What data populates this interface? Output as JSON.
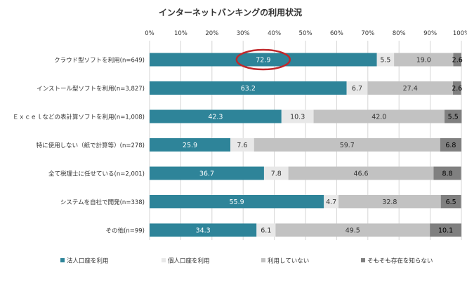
{
  "chart_data": {
    "type": "bar",
    "stacked": true,
    "orientation": "horizontal",
    "title": "インターネットバンキングの利用状況",
    "xlim": [
      0,
      100
    ],
    "x_ticks": [
      "0%",
      "10%",
      "20%",
      "30%",
      "40%",
      "50%",
      "60%",
      "70%",
      "80%",
      "90%",
      "100%"
    ],
    "grid": true,
    "legend_position": "bottom",
    "categories": [
      "クラウド型ソフトを利用(n=649)",
      "インストール型ソフトを利用(n=3,827)",
      "Ｅｘｃｅｌなどの表計算ソフトを利用(n=1,008)",
      "特に使用しない（紙で計算等）(n=278)",
      "全て税理士に任せている(n=2,001)",
      "システムを自社で開発(n=338)",
      "その他(n=99)"
    ],
    "series": [
      {
        "name": "法人口座を利用",
        "color": "#2E8499",
        "text_color": "#ffffff",
        "values": [
          72.9,
          63.2,
          42.3,
          25.9,
          36.7,
          55.9,
          34.3
        ],
        "labels": [
          "72.9",
          "63.2",
          "42.3",
          "25.9",
          "36.7",
          "55.9",
          "34.3"
        ]
      },
      {
        "name": "個人口座を利用",
        "color": "#E8E8E8",
        "text_color": "#333333",
        "values": [
          5.5,
          6.7,
          10.3,
          7.6,
          7.8,
          4.7,
          6.1
        ],
        "labels": [
          "5.5",
          "6.7",
          "10.3",
          "7.6",
          "7.8",
          "4.7",
          "6.1"
        ]
      },
      {
        "name": "利用していない",
        "color": "#C2C2C2",
        "text_color": "#333333",
        "values": [
          19.0,
          27.4,
          42.0,
          59.7,
          46.6,
          32.8,
          49.5
        ],
        "labels": [
          "19.0",
          "27.4",
          "42.0",
          "59.7",
          "46.6",
          "32.8",
          "49.5"
        ]
      },
      {
        "name": "そもそも存在を知らない",
        "color": "#808080",
        "text_color": "#000000",
        "values": [
          2.6,
          2.6,
          5.5,
          6.8,
          8.8,
          6.5,
          10.1
        ],
        "labels": [
          "2.6",
          "2.6",
          "5.5",
          "6.8",
          "8.8",
          "6.5",
          "10.1"
        ]
      }
    ],
    "highlight": {
      "category_index": 0,
      "series_index": 0,
      "color": "#C0282B"
    }
  }
}
